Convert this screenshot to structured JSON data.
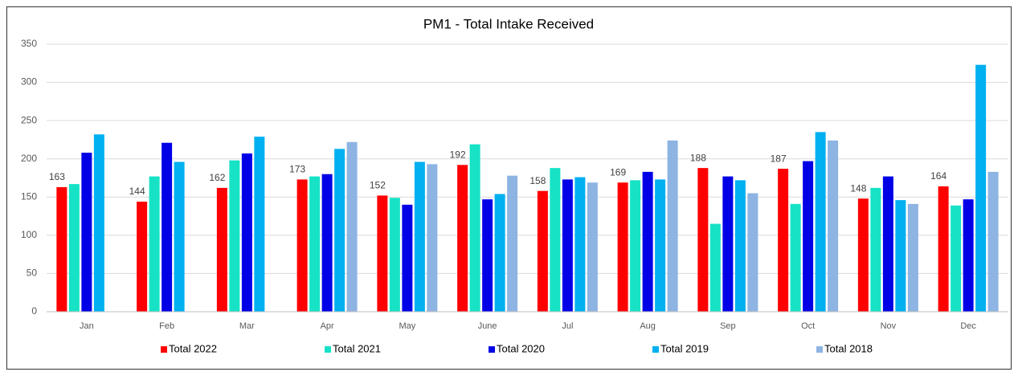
{
  "chart_data": {
    "type": "bar",
    "title": "PM1 - Total Intake Received",
    "categories": [
      "Jan",
      "Feb",
      "Mar",
      "Apr",
      "May",
      "June",
      "Jul",
      "Aug",
      "Sep",
      "Oct",
      "Nov",
      "Dec"
    ],
    "series": [
      {
        "name": "Total 2022",
        "color": "#ff0000",
        "data_labels": true,
        "values": [
          163,
          144,
          162,
          173,
          152,
          192,
          158,
          169,
          188,
          187,
          148,
          164
        ]
      },
      {
        "name": "Total 2021",
        "color": "#17e2c6",
        "values": [
          167,
          177,
          198,
          177,
          149,
          219,
          188,
          172,
          115,
          141,
          162,
          139
        ]
      },
      {
        "name": "Total 2020",
        "color": "#0000e6",
        "values": [
          208,
          221,
          207,
          180,
          140,
          147,
          173,
          183,
          177,
          197,
          177,
          147
        ]
      },
      {
        "name": "Total 2019",
        "color": "#00b0f0",
        "values": [
          232,
          196,
          229,
          213,
          196,
          154,
          176,
          173,
          172,
          235,
          146,
          323
        ]
      },
      {
        "name": "Total 2018",
        "color": "#8db4e2",
        "values": [
          null,
          null,
          null,
          222,
          193,
          178,
          169,
          224,
          155,
          224,
          141,
          183
        ]
      }
    ],
    "ylim": [
      0,
      350
    ],
    "yticks": [
      0,
      50,
      100,
      150,
      200,
      250,
      300,
      350
    ],
    "grid": true,
    "legend": "bottom"
  }
}
